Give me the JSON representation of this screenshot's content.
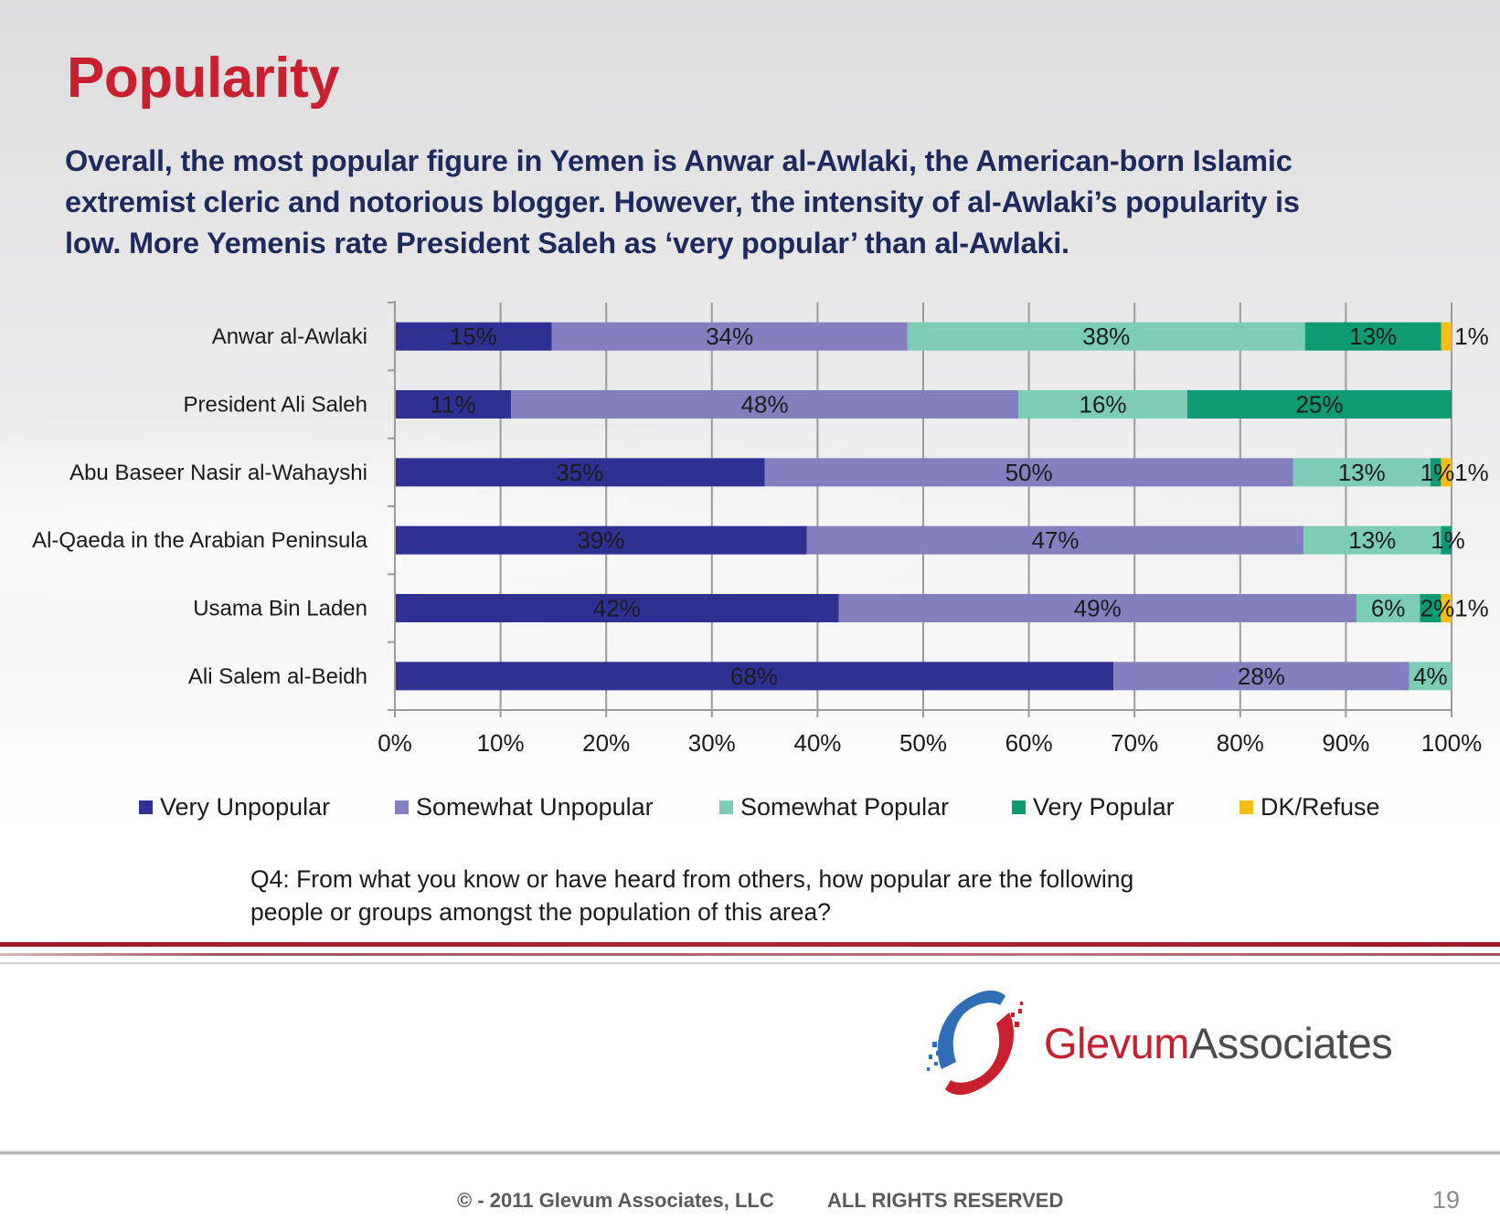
{
  "slide": {
    "title": "Popularity",
    "subtitle_lines": [
      "Overall, the most popular figure in Yemen is Anwar al-Awlaki, the American-born Islamic",
      "extremist cleric and notorious blogger.  However, the intensity of al-Awlaki’s popularity is",
      "low.  More Yemenis rate President Saleh as ‘very popular’ than al-Awlaki."
    ],
    "question_lines": [
      "Q4:  From what you know or have heard from others, how popular are the following",
      "people or groups amongst the population of this area?"
    ]
  },
  "chart_data": {
    "type": "bar",
    "orientation": "horizontal",
    "stacked": "100%",
    "title": "",
    "xlabel": "",
    "ylabel": "",
    "xlim": [
      0,
      100
    ],
    "x_ticks": [
      "0%",
      "10%",
      "20%",
      "30%",
      "40%",
      "50%",
      "60%",
      "70%",
      "80%",
      "90%",
      "100%"
    ],
    "grid": true,
    "legend_position": "bottom",
    "categories": [
      "Anwar al-Awlaki",
      "President Ali Saleh",
      "Abu Baseer Nasir al-Wahayshi",
      "Al-Qaeda in the Arabian Peninsula",
      "Usama Bin Laden",
      "Ali Salem al-Beidh"
    ],
    "series": [
      {
        "name": "Very Unpopular",
        "color": "#2e3192",
        "values": [
          15,
          11,
          35,
          39,
          42,
          68
        ]
      },
      {
        "name": "Somewhat Unpopular",
        "color": "#8480c0",
        "values": [
          34,
          48,
          50,
          47,
          49,
          28
        ]
      },
      {
        "name": "Somewhat Popular",
        "color": "#7dcdb6",
        "values": [
          38,
          16,
          13,
          13,
          6,
          4
        ]
      },
      {
        "name": "Very Popular",
        "color": "#0e9a73",
        "values": [
          13,
          25,
          1,
          1,
          2,
          0
        ]
      },
      {
        "name": "DK/Refuse",
        "color": "#f6bd17",
        "values": [
          1,
          0,
          1,
          0,
          1,
          0
        ]
      }
    ],
    "value_suffix": "%"
  },
  "branding": {
    "company_part1": "Glevum",
    "company_part2": "Associates",
    "copyright": "© - 2011 Glevum Associates, LLC",
    "rights": "ALL RIGHTS RESERVED",
    "page_number": "19",
    "logo_icon": "glevum-swirl-logo-icon"
  }
}
